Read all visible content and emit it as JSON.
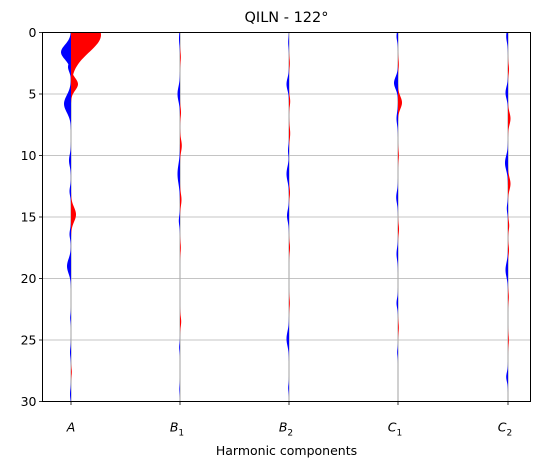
{
  "chart_data": {
    "type": "area",
    "title": "QILN - 122°",
    "xlabel": "Harmonic components",
    "ylabel": "",
    "categories": [
      {
        "base": "A",
        "sub": ""
      },
      {
        "base": "B",
        "sub": "1"
      },
      {
        "base": "B",
        "sub": "2"
      },
      {
        "base": "C",
        "sub": "1"
      },
      {
        "base": "C",
        "sub": "2"
      }
    ],
    "ylim": [
      30,
      0
    ],
    "yticks": [
      0,
      5,
      10,
      15,
      20,
      25,
      30
    ],
    "grid_y": true,
    "colors": {
      "positive": "#ff0000",
      "negative": "#0000ff",
      "axis_line": "#b0b0b0"
    },
    "series": [
      {
        "category": "A",
        "features": [
          {
            "depth": 0.2,
            "width": 1.4,
            "amp": 30
          },
          {
            "depth": 0.6,
            "width": 0.5,
            "amp": 8
          },
          {
            "depth": 1.6,
            "width": 0.6,
            "amp": -10
          },
          {
            "depth": 2.8,
            "width": 0.4,
            "amp": -3
          },
          {
            "depth": 4.2,
            "width": 0.5,
            "amp": 7
          },
          {
            "depth": 5.8,
            "width": 0.7,
            "amp": -7
          },
          {
            "depth": 10.4,
            "width": 0.5,
            "amp": -2
          },
          {
            "depth": 12.9,
            "width": 0.4,
            "amp": -1.5
          },
          {
            "depth": 14.8,
            "width": 0.6,
            "amp": 5
          },
          {
            "depth": 16.4,
            "width": 0.4,
            "amp": -1.5
          },
          {
            "depth": 19.0,
            "width": 0.6,
            "amp": -4
          },
          {
            "depth": 23.2,
            "width": 0.3,
            "amp": -0.8
          },
          {
            "depth": 26.0,
            "width": 0.4,
            "amp": -1
          },
          {
            "depth": 27.6,
            "width": 0.3,
            "amp": 0.8
          },
          {
            "depth": 29.4,
            "width": 0.4,
            "amp": -1
          }
        ]
      },
      {
        "category": "B1",
        "features": [
          {
            "depth": 0.5,
            "width": 0.5,
            "amp": -1
          },
          {
            "depth": 2.0,
            "width": 0.4,
            "amp": 0.8
          },
          {
            "depth": 5.0,
            "width": 0.6,
            "amp": -2.5
          },
          {
            "depth": 6.5,
            "width": 0.4,
            "amp": 1
          },
          {
            "depth": 9.2,
            "width": 0.5,
            "amp": 1.8
          },
          {
            "depth": 11.5,
            "width": 0.8,
            "amp": -2.5
          },
          {
            "depth": 13.6,
            "width": 0.5,
            "amp": 1.5
          },
          {
            "depth": 15.3,
            "width": 0.4,
            "amp": -1.2
          },
          {
            "depth": 17.5,
            "width": 0.4,
            "amp": 0.8
          },
          {
            "depth": 23.5,
            "width": 0.4,
            "amp": 1.2
          },
          {
            "depth": 25.6,
            "width": 0.3,
            "amp": -0.8
          },
          {
            "depth": 29.0,
            "width": 0.3,
            "amp": -0.6
          }
        ]
      },
      {
        "category": "B2",
        "features": [
          {
            "depth": 0.8,
            "width": 0.4,
            "amp": -0.8
          },
          {
            "depth": 2.5,
            "width": 0.4,
            "amp": 0.8
          },
          {
            "depth": 4.2,
            "width": 0.5,
            "amp": -2.5
          },
          {
            "depth": 5.6,
            "width": 0.4,
            "amp": 1.2
          },
          {
            "depth": 8.2,
            "width": 0.5,
            "amp": 1.2
          },
          {
            "depth": 9.6,
            "width": 0.4,
            "amp": -1
          },
          {
            "depth": 11.5,
            "width": 0.6,
            "amp": -2.5
          },
          {
            "depth": 13.0,
            "width": 0.4,
            "amp": 1
          },
          {
            "depth": 14.9,
            "width": 0.5,
            "amp": -2
          },
          {
            "depth": 17.5,
            "width": 0.4,
            "amp": 1
          },
          {
            "depth": 22.0,
            "width": 0.4,
            "amp": 0.8
          },
          {
            "depth": 24.9,
            "width": 0.6,
            "amp": -2.5
          },
          {
            "depth": 28.9,
            "width": 0.3,
            "amp": -0.8
          }
        ]
      },
      {
        "category": "C1",
        "features": [
          {
            "depth": 0.3,
            "width": 0.4,
            "amp": -1.5
          },
          {
            "depth": 2.6,
            "width": 0.4,
            "amp": 0.8
          },
          {
            "depth": 4.1,
            "width": 0.5,
            "amp": -4
          },
          {
            "depth": 5.7,
            "width": 0.5,
            "amp": 4
          },
          {
            "depth": 7.0,
            "width": 0.5,
            "amp": -1.5
          },
          {
            "depth": 10.0,
            "width": 0.4,
            "amp": 0.8
          },
          {
            "depth": 13.4,
            "width": 0.5,
            "amp": -1.8
          },
          {
            "depth": 16.0,
            "width": 0.4,
            "amp": 1
          },
          {
            "depth": 18.0,
            "width": 0.5,
            "amp": -1.5
          },
          {
            "depth": 22.0,
            "width": 0.4,
            "amp": -1.5
          },
          {
            "depth": 24.0,
            "width": 0.4,
            "amp": 0.8
          },
          {
            "depth": 26.0,
            "width": 0.3,
            "amp": -0.8
          }
        ]
      },
      {
        "category": "C2",
        "features": [
          {
            "depth": 0.3,
            "width": 0.5,
            "amp": -1.8
          },
          {
            "depth": 3.0,
            "width": 0.4,
            "amp": 1
          },
          {
            "depth": 4.9,
            "width": 0.5,
            "amp": -2.5
          },
          {
            "depth": 7.0,
            "width": 0.5,
            "amp": 2.5
          },
          {
            "depth": 10.6,
            "width": 0.6,
            "amp": -3
          },
          {
            "depth": 12.3,
            "width": 0.5,
            "amp": 2.5
          },
          {
            "depth": 14.3,
            "width": 0.4,
            "amp": -1.2
          },
          {
            "depth": 15.7,
            "width": 0.4,
            "amp": 1.2
          },
          {
            "depth": 17.7,
            "width": 0.4,
            "amp": 1
          },
          {
            "depth": 19.3,
            "width": 0.6,
            "amp": -2.5
          },
          {
            "depth": 21.5,
            "width": 0.4,
            "amp": 0.8
          },
          {
            "depth": 25.0,
            "width": 0.4,
            "amp": 0.8
          },
          {
            "depth": 28.0,
            "width": 0.4,
            "amp": -1.8
          }
        ]
      }
    ]
  }
}
